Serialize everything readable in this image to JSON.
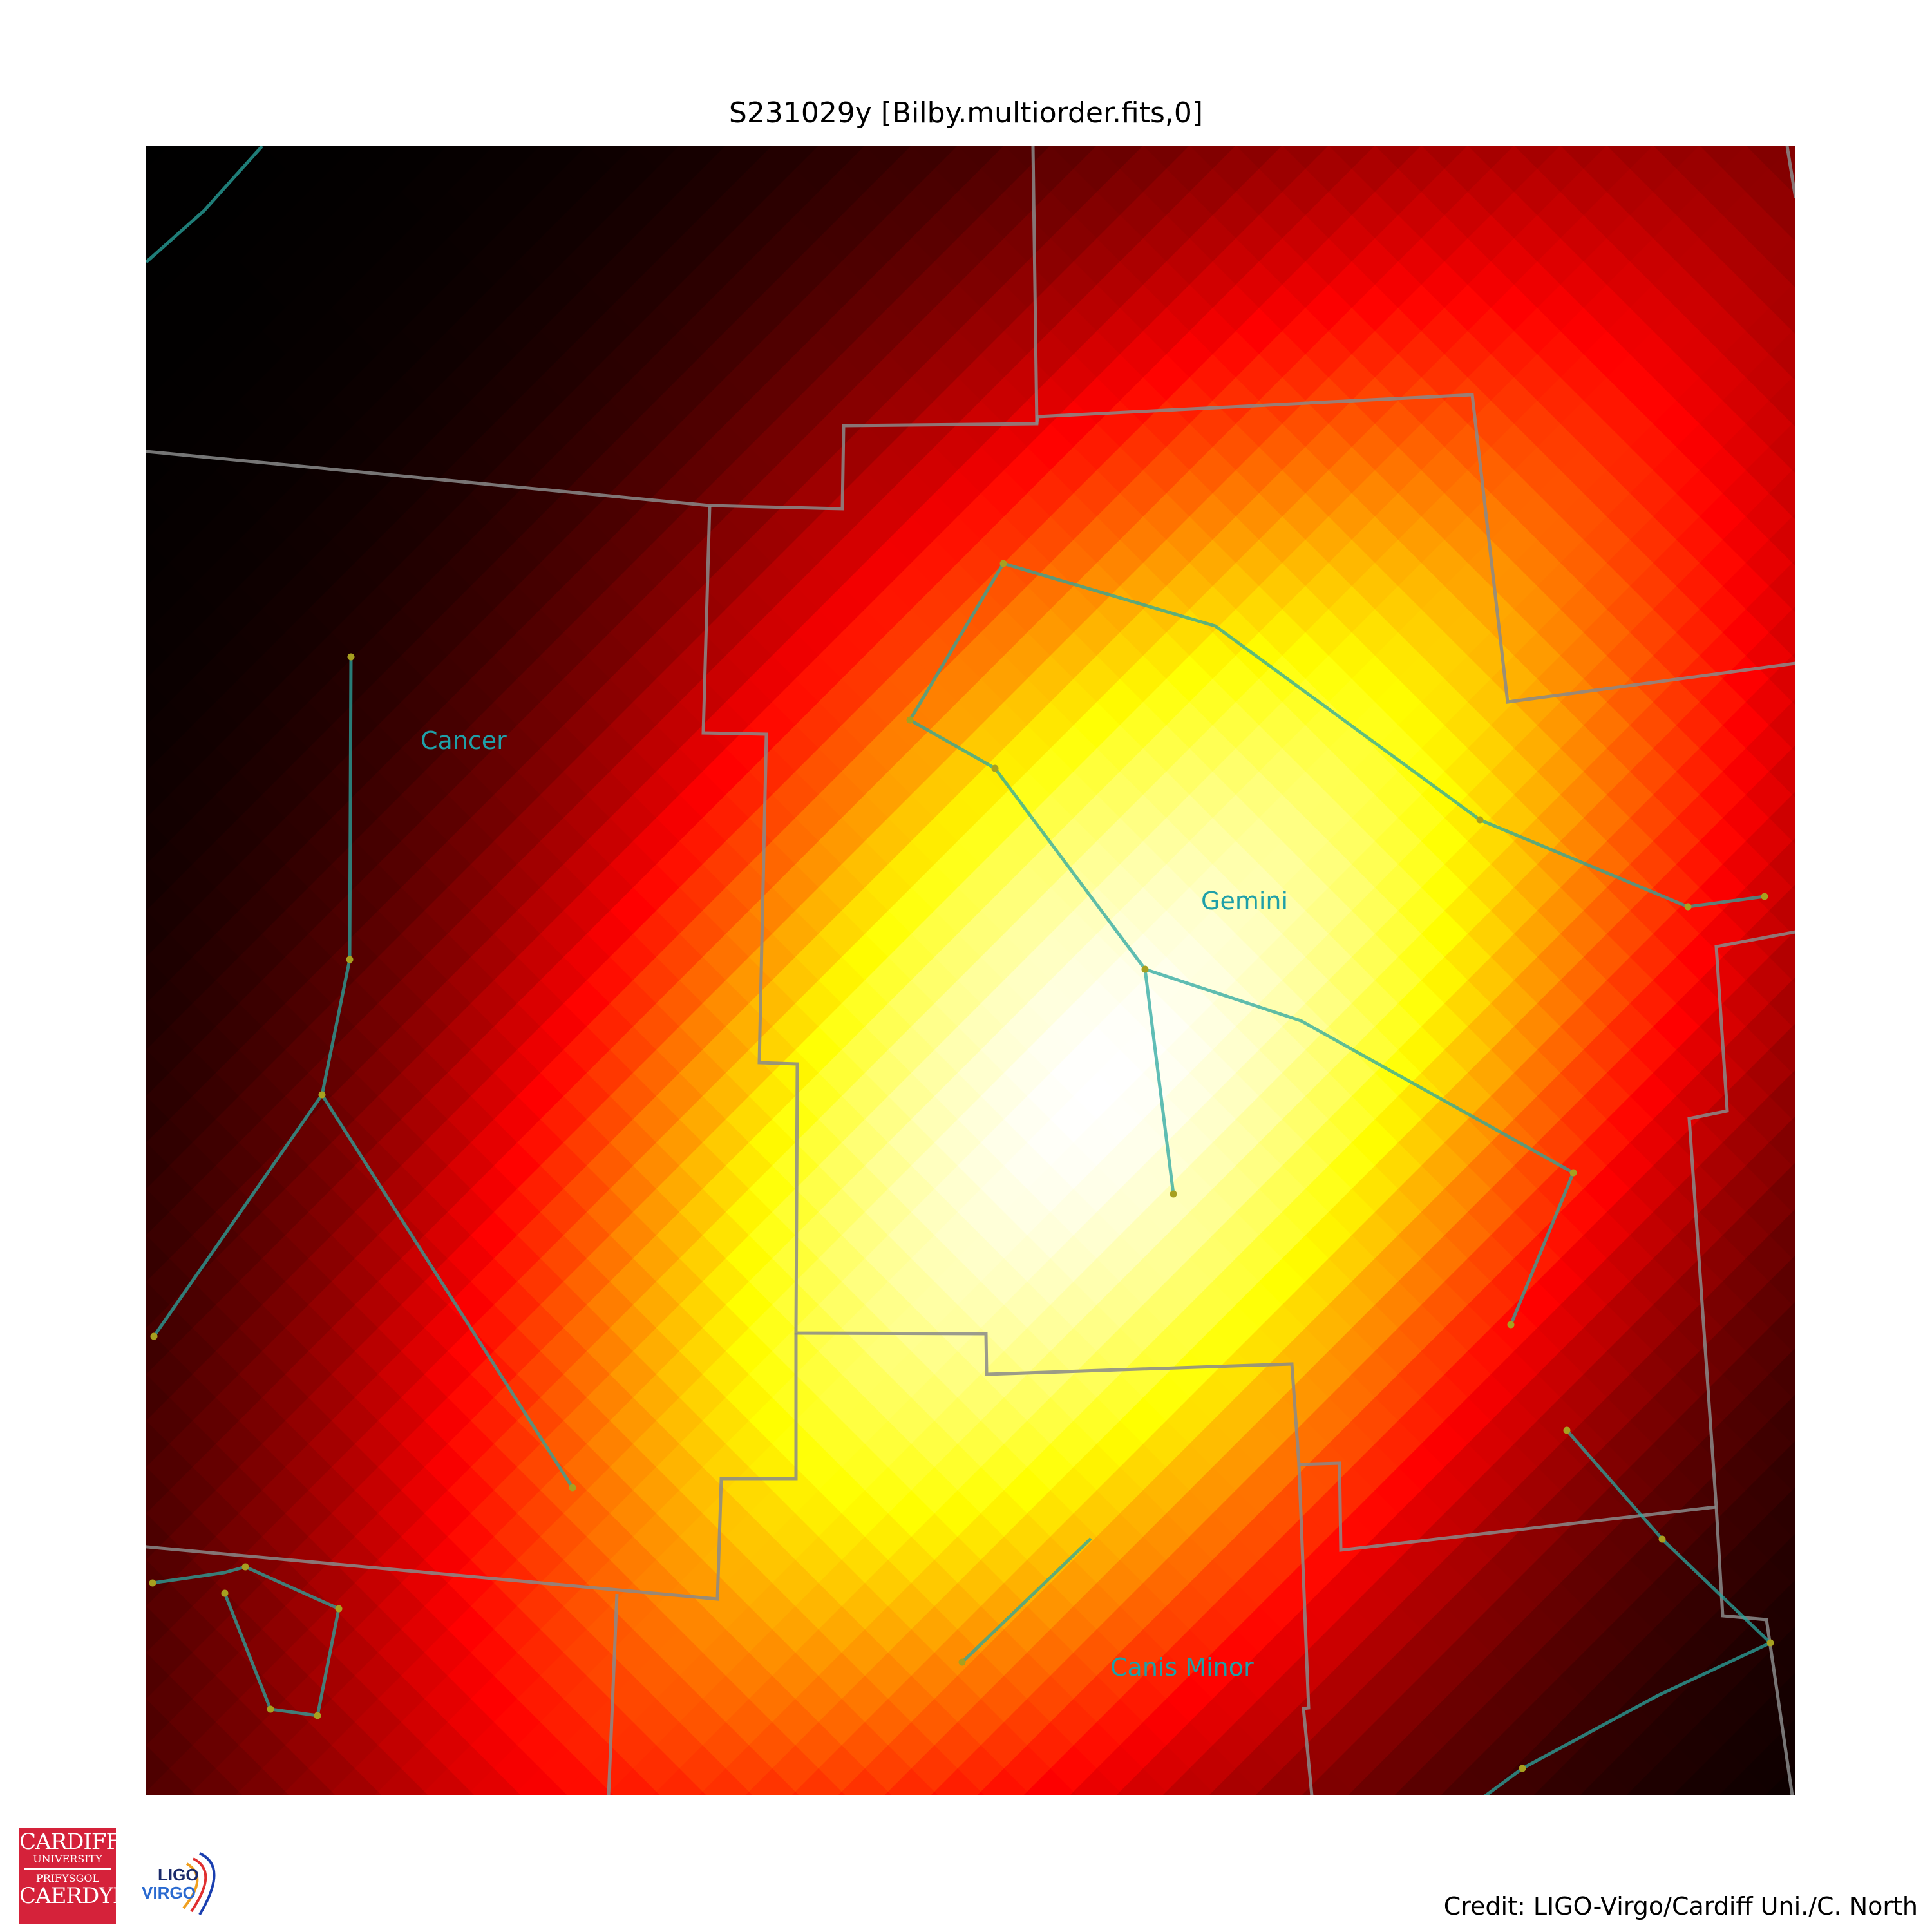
{
  "title": "S231029y [Bilby.multiorder.fits,0]",
  "credit": "Credit: LIGO-Virgo/Cardiff Uni./C. North",
  "constellations": [
    {
      "name": "Cancer"
    },
    {
      "name": "Gemini"
    },
    {
      "name": "Canis Minor"
    }
  ],
  "logos": {
    "cardiff": {
      "lines": [
        "CARDIFF",
        "UNIVERSITY",
        "PRIFYSGOL",
        "CAERDYDD"
      ],
      "color": "#d5223a"
    },
    "ligo": {
      "lines": [
        "LIGO",
        "VIRGO"
      ]
    }
  },
  "colormap": {
    "name": "hot",
    "low": "#000000",
    "mid_low": "#ff0000",
    "mid_high": "#ffff00",
    "high": "#ffffff"
  },
  "colors": {
    "boundary_lines": "#8a8a8a",
    "constellation_lines": "#2aa7a0",
    "star_points": "#a7a020",
    "constellation_labels": "#1fa0a8"
  }
}
